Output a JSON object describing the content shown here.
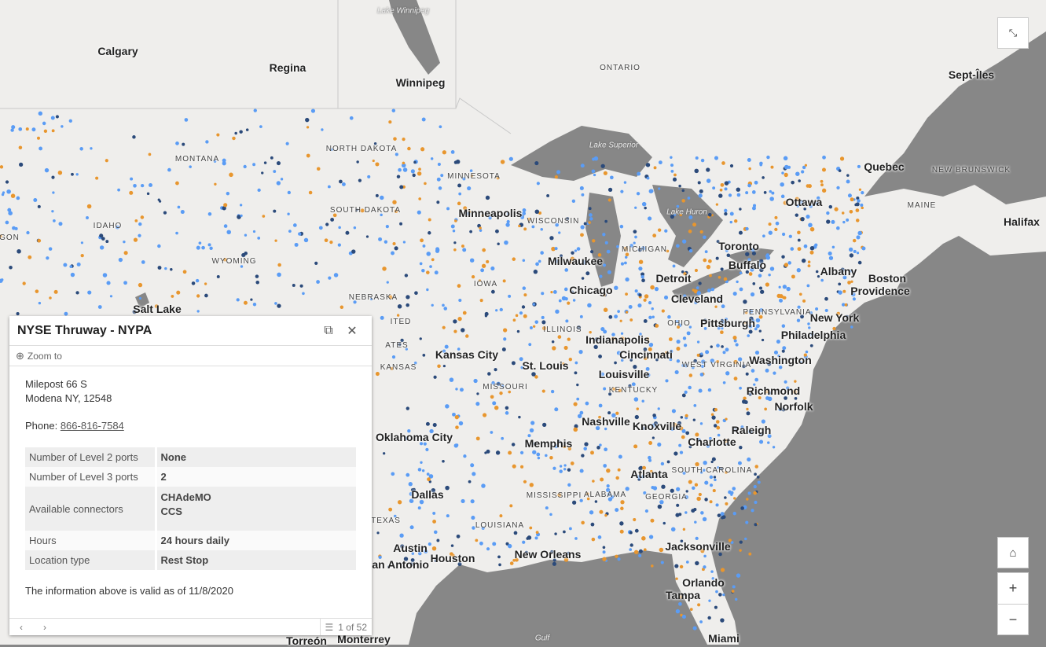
{
  "map": {
    "colors": {
      "land": "#efeeec",
      "water": "#878787",
      "dot_blue": "#5a9cf5",
      "dot_orange": "#e8962e",
      "dot_navy": "#2b4a7a"
    },
    "cities": [
      "Calgary",
      "Regina",
      "Winnipeg",
      "Minneapolis",
      "Milwaukee",
      "Chicago",
      "Detroit",
      "Cleveland",
      "Toronto",
      "Buffalo",
      "Ottawa",
      "Albany",
      "Boston",
      "Providence",
      "New York",
      "Philadelphia",
      "Pittsburgh",
      "Washington",
      "Richmond",
      "Norfolk",
      "Indianapolis",
      "Cincinnati",
      "Louisville",
      "Kansas City",
      "St. Louis",
      "Nashville",
      "Knoxville",
      "Raleigh",
      "Charlotte",
      "Memphis",
      "Atlanta",
      "Oklahoma City",
      "Dallas",
      "Austin",
      "San Antonio",
      "Houston",
      "New Orleans",
      "Jacksonville",
      "Orlando",
      "Tampa",
      "Miami",
      "Halifax",
      "Quebec",
      "Salt Lake",
      "Monterrey",
      "Torreón",
      "Sept-Îles"
    ],
    "states": [
      "MONTANA",
      "NORTH DAKOTA",
      "SOUTH DAKOTA",
      "IDAHO",
      "WYOMING",
      "NEBRASKA",
      "MINNESOTA",
      "WISCONSIN",
      "IOWA",
      "MICHIGAN",
      "ILLINOIS",
      "OHIO",
      "PENNSYLVANIA",
      "KANSAS",
      "MISSOURI",
      "KENTUCKY",
      "WEST VIRGINIA",
      "MISSISSIPPI",
      "ALABAMA",
      "GEORGIA",
      "SOUTH CAROLINA",
      "LOUISIANA",
      "TEXAS",
      "MAINE",
      "NEW BRUNSWICK",
      "ONTARIO",
      "ITED",
      "ATES",
      "GON"
    ],
    "water": [
      "Lake Winnipeg",
      "Lake Superior",
      "Lake Huron",
      "Gulf"
    ]
  },
  "controls": {
    "expand_icon": "expand-icon",
    "home_icon": "home-icon",
    "zoom_in": "+",
    "zoom_out": "−"
  },
  "popup": {
    "title": "NYSE Thruway - NYPA",
    "zoom_to": "Zoom to",
    "address_line1": "Milepost 66 S",
    "address_line2": "Modena NY, 12548",
    "phone_label": "Phone: ",
    "phone": "866-816-7584",
    "rows": [
      {
        "key": "Number of Level 2 ports",
        "value": "None"
      },
      {
        "key": "Number of Level 3 ports",
        "value": "2"
      },
      {
        "key": "Available connectors",
        "value": "CHAdeMO",
        "value2": "CCS"
      },
      {
        "key": "Hours",
        "value": "24 hours daily"
      },
      {
        "key": "Location type",
        "value": "Rest Stop"
      }
    ],
    "valid_note": "The information above is valid as of 11/8/2020",
    "pager": "1 of 52"
  }
}
